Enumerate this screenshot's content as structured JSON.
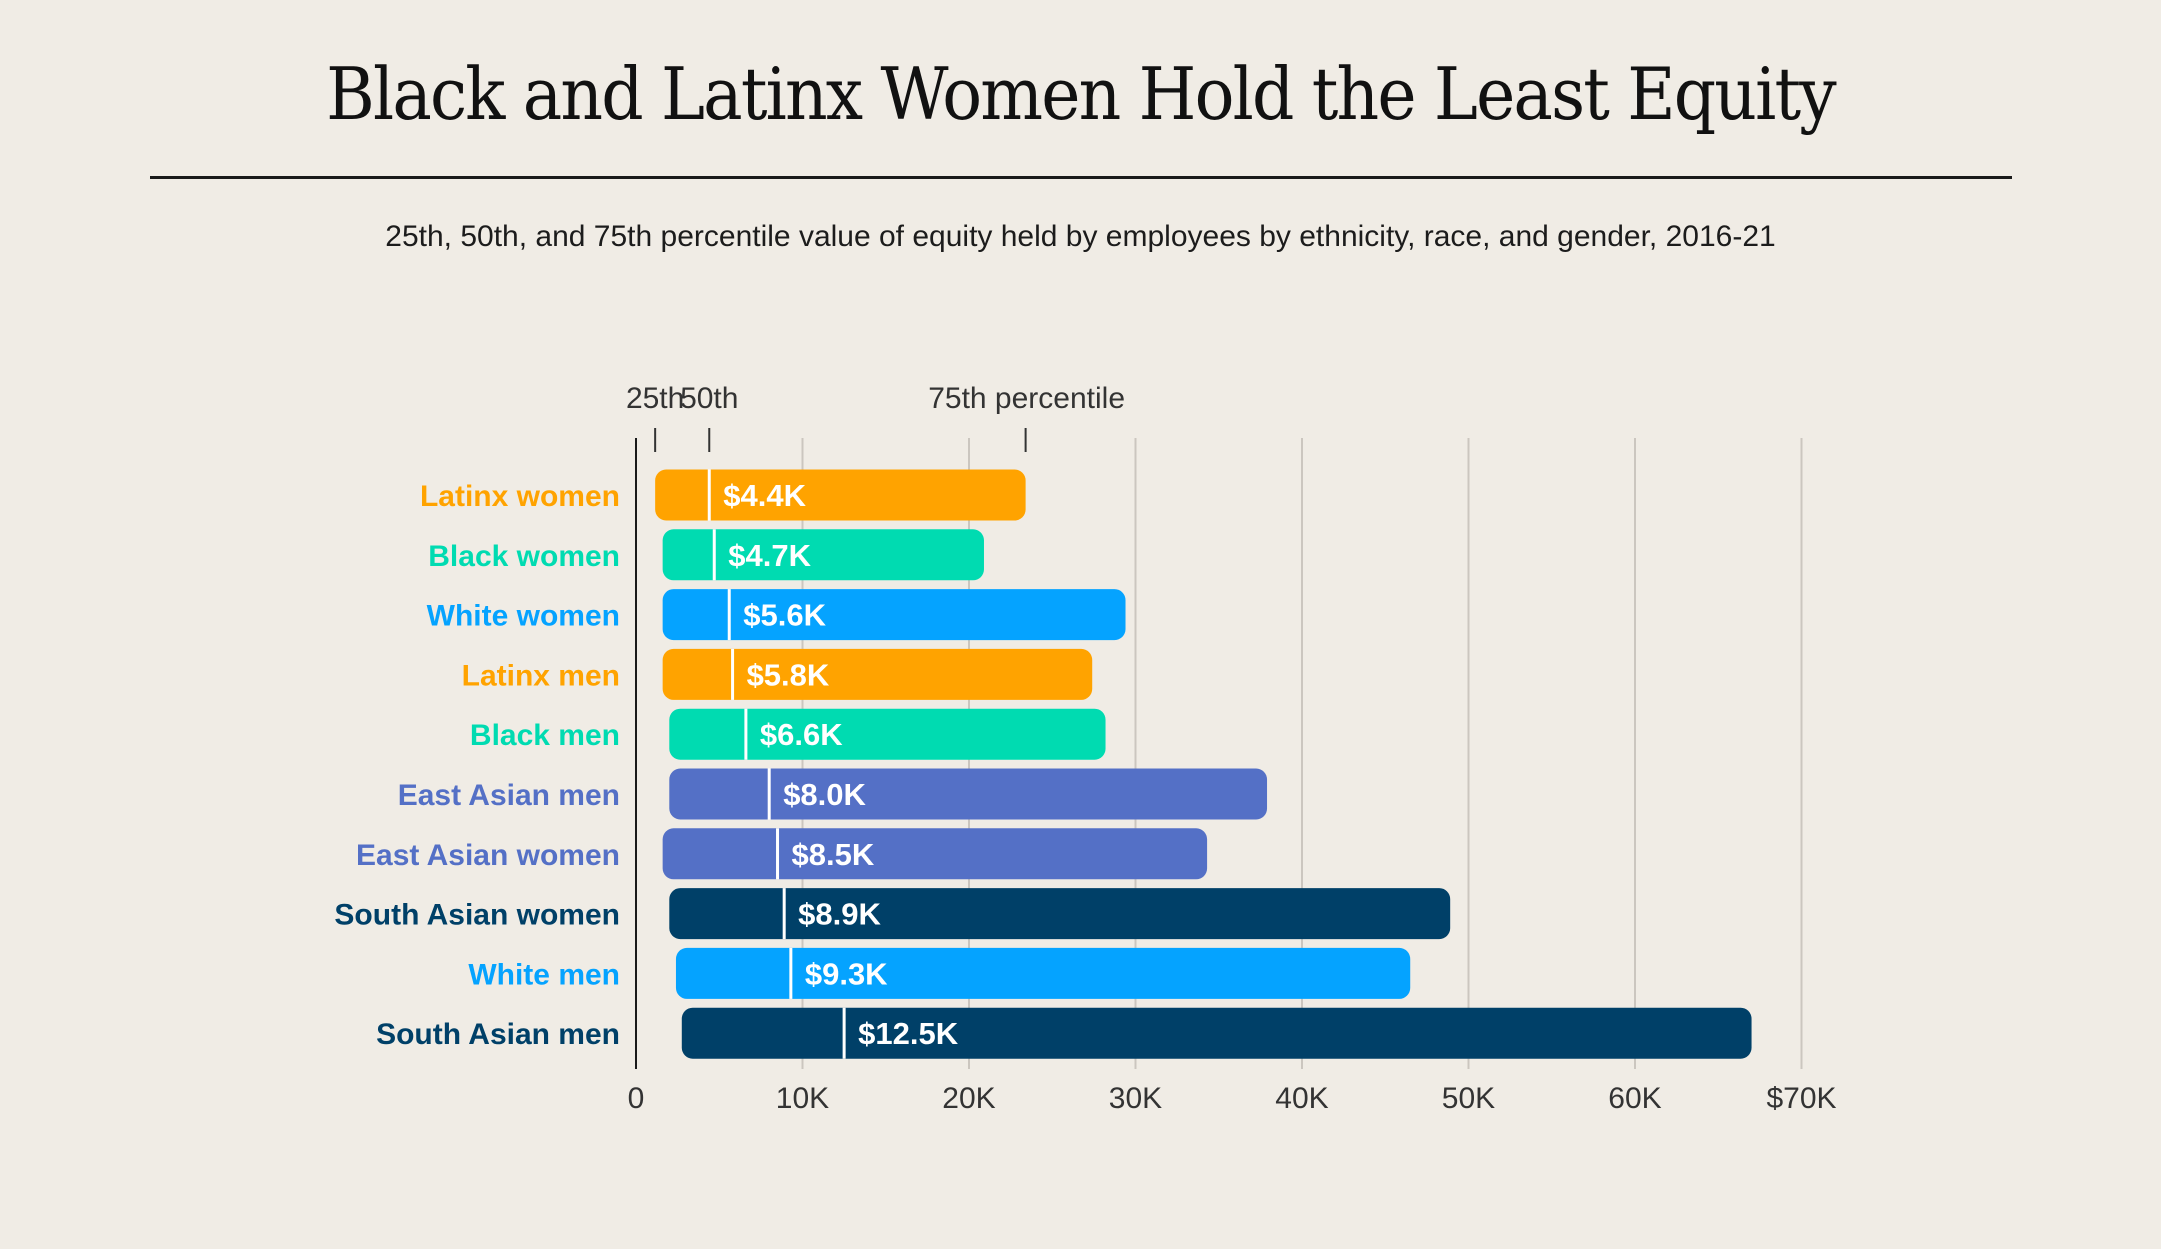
{
  "title": "Black and Latinx Women Hold the Least Equity",
  "subtitle": "25th, 50th, and 75th percentile value of equity held by employees by ethnicity, race, and gender, 2016-21",
  "chart_data": {
    "type": "bar",
    "subtype": "horizontal floating range bars (25th to 75th percentile) with median marker",
    "title": "Black and Latinx Women Hold the Least Equity",
    "legend_key": {
      "p25": "25th",
      "p50": "50th",
      "p75": "75th percentile",
      "example_row": "Latinx women"
    },
    "xlim": [
      0,
      70000
    ],
    "x_ticks": [
      0,
      10000,
      20000,
      30000,
      40000,
      50000,
      60000,
      70000
    ],
    "x_tick_labels": [
      "0",
      "10K",
      "20K",
      "30K",
      "40K",
      "50K",
      "60K",
      "$70K"
    ],
    "grid": true,
    "categories": [
      "Latinx women",
      "Black women",
      "White women",
      "Latinx men",
      "Black men",
      "East Asian men",
      "East Asian women",
      "South Asian women",
      "White men",
      "South Asian men"
    ],
    "p25": [
      1150,
      1600,
      1600,
      1600,
      2000,
      2000,
      1600,
      2000,
      2400,
      2750
    ],
    "p50": [
      4400,
      4700,
      5600,
      5800,
      6600,
      8000,
      8500,
      8900,
      9300,
      12500
    ],
    "p75": [
      23400,
      20900,
      29400,
      27400,
      28200,
      37900,
      34300,
      48900,
      46500,
      67000
    ],
    "median_labels": [
      "$4.4K",
      "$4.7K",
      "$5.6K",
      "$5.8K",
      "$6.6K",
      "$8.0K",
      "$8.5K",
      "$8.9K",
      "$9.3K",
      "$12.5K"
    ],
    "colors": [
      "#FFA300",
      "#00DBB1",
      "#05A3FF",
      "#FFA300",
      "#00DBB1",
      "#5470C6",
      "#5470C6",
      "#004068",
      "#05A3FF",
      "#004068"
    ]
  }
}
